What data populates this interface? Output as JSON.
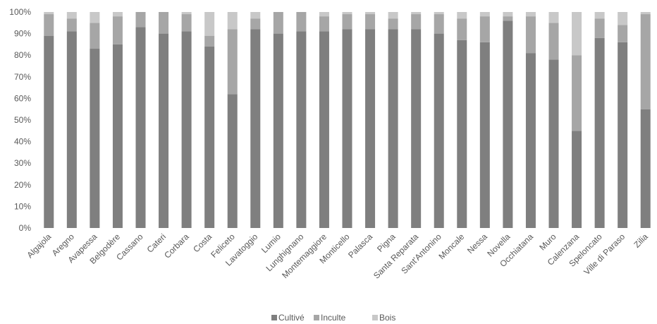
{
  "chart_data": {
    "type": "bar",
    "stacked": true,
    "percent": true,
    "categories": [
      "Algajola",
      "Aregno",
      "Avapessa",
      "Belgodère",
      "Cassano",
      "Cateri",
      "Corbara",
      "Costa",
      "Feliceto",
      "Lavatoggio",
      "Lumio",
      "Lunghignano",
      "Montemaggiore",
      "Monticello",
      "Palasca",
      "Pigna",
      "Santa Reparata",
      "Sant'Antonino",
      "Moncale",
      "Nessa",
      "Novella",
      "Occhiatana",
      "Muro",
      "Calenzana",
      "Speloncato",
      "Ville di Paraso",
      "Zilia"
    ],
    "series": [
      {
        "name": "Cultivé",
        "color": "#7f7f7f",
        "values": [
          89,
          91,
          83,
          85,
          93,
          90,
          91,
          84,
          62,
          92,
          90,
          91,
          91,
          92,
          92,
          92,
          92,
          90,
          87,
          86,
          96,
          81,
          78,
          45,
          88,
          86,
          55
        ]
      },
      {
        "name": "Inculte",
        "color": "#a6a6a6",
        "values": [
          10,
          6,
          12,
          13,
          7,
          10,
          8,
          5,
          30,
          5,
          10,
          9,
          7,
          7,
          7,
          5,
          7,
          9,
          10,
          12,
          2,
          17,
          17,
          35,
          9,
          8,
          44
        ]
      },
      {
        "name": "Bois",
        "color": "#c8c8c8",
        "values": [
          1,
          3,
          5,
          2,
          0,
          0,
          1,
          11,
          8,
          3,
          0,
          0,
          2,
          1,
          1,
          3,
          1,
          1,
          3,
          2,
          2,
          2,
          5,
          20,
          3,
          6,
          1
        ]
      }
    ],
    "yticks": [
      "0%",
      "10%",
      "20%",
      "30%",
      "40%",
      "50%",
      "60%",
      "70%",
      "80%",
      "90%",
      "100%"
    ],
    "ylim": [
      0,
      100
    ],
    "title": "",
    "xlabel": "",
    "ylabel": "",
    "legend_position": "bottom",
    "grid": false
  }
}
